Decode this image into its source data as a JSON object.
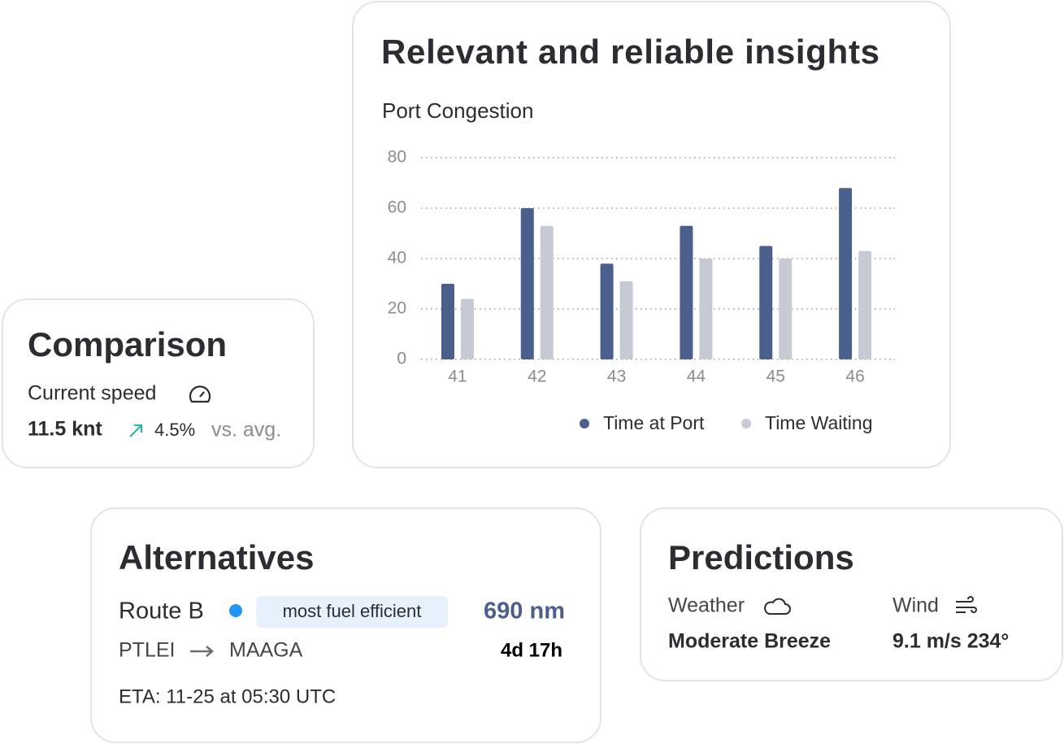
{
  "insights": {
    "title": "Relevant and reliable insights"
  },
  "chart_data": {
    "type": "bar",
    "title": "Port Congestion",
    "categories": [
      "41",
      "42",
      "43",
      "44",
      "45",
      "46"
    ],
    "series": [
      {
        "name": "Time at Port",
        "color": "#4a5f8c",
        "values": [
          30,
          60,
          38,
          53,
          45,
          68
        ]
      },
      {
        "name": "Time Waiting",
        "color": "#c5cad3",
        "values": [
          24,
          53,
          31,
          40,
          40,
          43
        ]
      }
    ],
    "ylim": [
      0,
      80
    ],
    "yticks": [
      0,
      20,
      40,
      60,
      80
    ],
    "grid": true
  },
  "comparison": {
    "title": "Comparison",
    "label": "Current speed",
    "speed": "11.5 knt",
    "change": "4.5%",
    "reference": "vs. avg."
  },
  "alternatives": {
    "title": "Alternatives",
    "route": "Route B",
    "badge": "most fuel efficient",
    "distance": "690 nm",
    "origin": "PTLEI",
    "destination": "MAAGA",
    "duration": "4d 17h",
    "eta": "ETA: 11-25 at 05:30 UTC"
  },
  "predictions": {
    "title": "Predictions",
    "weather_label": "Weather",
    "weather_value": "Moderate Breeze",
    "wind_label": "Wind",
    "wind_value": "9.1 m/s 234°"
  }
}
